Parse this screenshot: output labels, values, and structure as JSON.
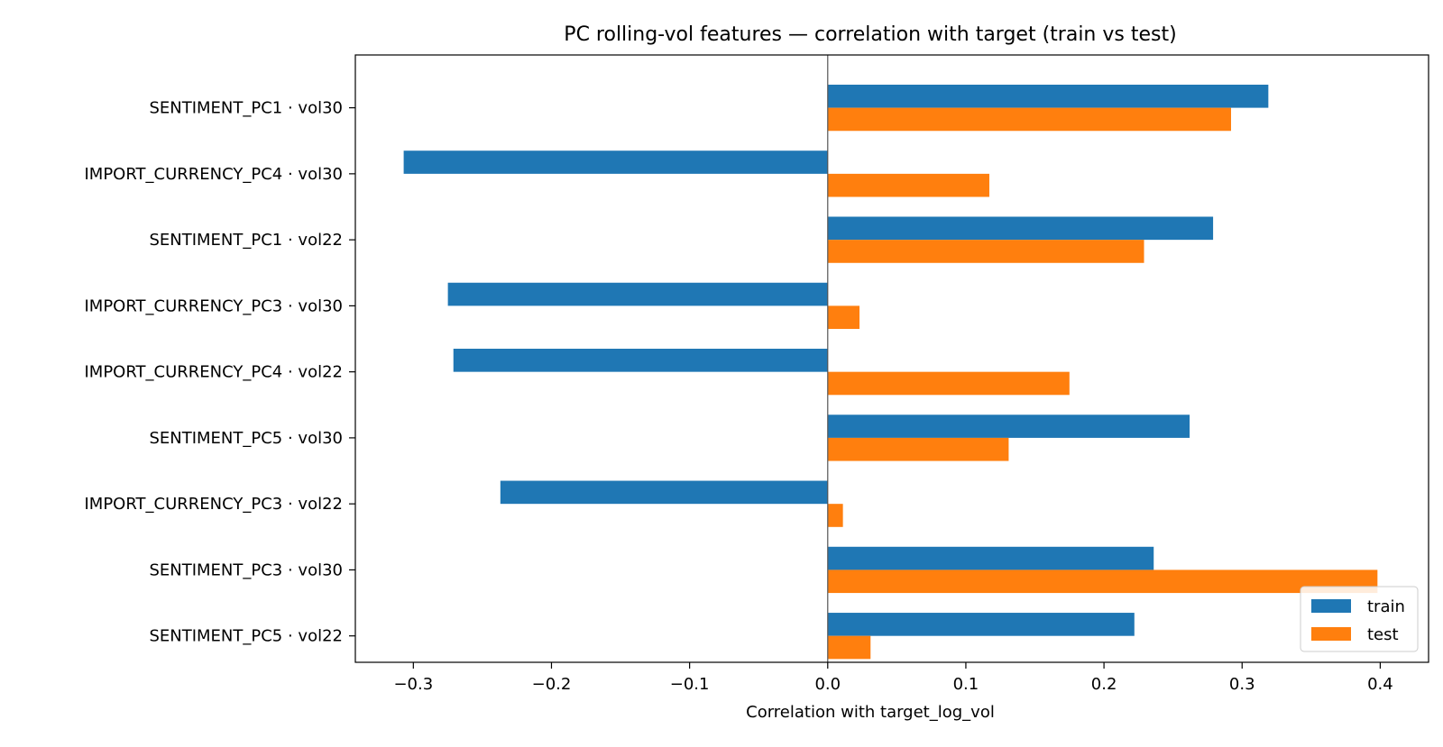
{
  "chart_data": {
    "type": "bar",
    "orientation": "horizontal",
    "title": "PC rolling-vol features — correlation with target (train vs test)",
    "xlabel": "Correlation with target_log_vol",
    "ylabel": "",
    "xlim": [
      -0.342,
      0.435
    ],
    "xticks": [
      -0.3,
      -0.2,
      -0.1,
      0.0,
      0.1,
      0.2,
      0.3,
      0.4
    ],
    "xtick_labels": [
      "−0.3",
      "−0.2",
      "−0.1",
      "0.0",
      "0.1",
      "0.2",
      "0.3",
      "0.4"
    ],
    "categories": [
      "SENTIMENT_PC1 · vol30",
      "IMPORT_CURRENCY_PC4 · vol30",
      "SENTIMENT_PC1 · vol22",
      "IMPORT_CURRENCY_PC3 · vol30",
      "IMPORT_CURRENCY_PC4 · vol22",
      "SENTIMENT_PC5 · vol30",
      "IMPORT_CURRENCY_PC3 · vol22",
      "SENTIMENT_PC3 · vol30",
      "SENTIMENT_PC5 · vol22"
    ],
    "series": [
      {
        "name": "train",
        "color": "#1f77b4",
        "values": [
          0.319,
          -0.307,
          0.279,
          -0.275,
          -0.271,
          0.262,
          -0.237,
          0.236,
          0.222
        ]
      },
      {
        "name": "test",
        "color": "#ff7f0e",
        "values": [
          0.292,
          0.117,
          0.229,
          0.023,
          0.175,
          0.131,
          0.011,
          0.398,
          0.031
        ]
      }
    ],
    "legend": {
      "position": "bottom-right",
      "entries": [
        "train",
        "test"
      ]
    },
    "zero_line": true,
    "grid": false
  }
}
